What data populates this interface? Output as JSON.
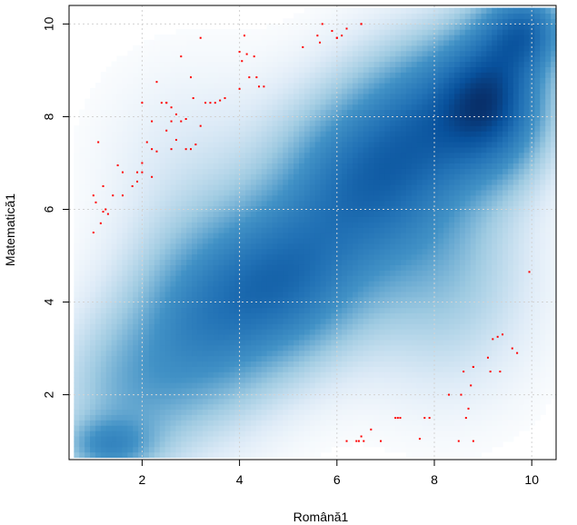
{
  "chart_data": {
    "type": "heatmap",
    "subtype": "smoothed-density-scatter",
    "xlabel": "Română1",
    "ylabel": "Matematică1",
    "xlim": [
      0.5,
      10.5
    ],
    "ylim": [
      0.6,
      10.4
    ],
    "x_ticks": [
      2,
      4,
      6,
      8,
      10
    ],
    "y_ticks": [
      2,
      4,
      6,
      8,
      10
    ],
    "grid": true,
    "colors": {
      "density_high": "#08306b",
      "density_mid": "#2171b5",
      "density_low": "#ffffff",
      "outlier_points": "#ff0000",
      "grid": "#d3d3d3"
    },
    "density_field": {
      "x_range": [
        0.6,
        10.5
      ],
      "y_range": [
        0.65,
        10.35
      ],
      "components": [
        {
          "x": 9.2,
          "y": 8.4,
          "sx": 0.8,
          "sy": 1.1,
          "w": 1.0
        },
        {
          "x": 9.9,
          "y": 9.9,
          "sx": 0.6,
          "sy": 0.6,
          "w": 0.7
        },
        {
          "x": 6.5,
          "y": 6.6,
          "sx": 1.2,
          "sy": 1.3,
          "w": 0.75
        },
        {
          "x": 5.0,
          "y": 4.5,
          "sx": 1.1,
          "sy": 1.2,
          "w": 0.7
        },
        {
          "x": 3.3,
          "y": 3.6,
          "sx": 1.1,
          "sy": 1.4,
          "w": 0.6
        },
        {
          "x": 1.7,
          "y": 2.0,
          "sx": 1.0,
          "sy": 1.2,
          "w": 0.35
        },
        {
          "x": 1.3,
          "y": 0.9,
          "sx": 0.6,
          "sy": 0.4,
          "w": 0.45
        },
        {
          "x": 7.8,
          "y": 8.0,
          "sx": 1.0,
          "sy": 1.2,
          "w": 0.55
        },
        {
          "x": 8.2,
          "y": 4.6,
          "sx": 1.2,
          "sy": 1.6,
          "w": 0.3
        },
        {
          "x": 3.0,
          "y": 7.0,
          "sx": 1.2,
          "sy": 1.4,
          "w": 0.1
        }
      ]
    },
    "outlier_points": {
      "x": [
        1.0,
        1.0,
        1.1,
        1.15,
        1.2,
        1.25,
        1.3,
        1.4,
        1.6,
        1.6,
        1.8,
        1.9,
        2.0,
        2.0,
        2.0,
        2.1,
        2.2,
        2.2,
        2.3,
        2.4,
        2.5,
        2.5,
        2.6,
        2.6,
        2.7,
        2.7,
        2.8,
        2.8,
        2.9,
        3.0,
        3.0,
        3.1,
        3.2,
        3.3,
        3.5,
        3.6,
        3.7,
        4.0,
        4.0,
        4.1,
        4.2,
        4.3,
        4.4,
        4.5,
        5.3,
        5.6,
        5.7,
        5.9,
        6.0,
        6.1,
        6.2,
        6.5,
        1.05,
        1.2,
        1.5,
        1.9,
        2.2,
        2.3,
        2.5,
        2.6,
        2.9,
        3.05,
        3.2,
        3.4,
        4.05,
        4.15,
        4.35,
        5.65,
        6.0,
        6.5
      ],
      "y": [
        5.5,
        6.3,
        7.45,
        5.7,
        6.5,
        6.0,
        5.9,
        6.3,
        6.3,
        6.8,
        6.5,
        6.6,
        6.8,
        7.0,
        8.3,
        7.45,
        7.3,
        7.9,
        8.75,
        8.3,
        7.7,
        8.3,
        7.3,
        8.2,
        8.05,
        7.5,
        7.9,
        9.3,
        7.3,
        7.3,
        8.85,
        7.4,
        7.8,
        8.3,
        8.3,
        8.35,
        8.4,
        8.6,
        9.4,
        9.75,
        8.85,
        9.3,
        8.65,
        8.65,
        9.5,
        9.75,
        10.0,
        9.85,
        9.7,
        9.75,
        9.9,
        10.0,
        6.15,
        5.95,
        6.95,
        6.8,
        6.7,
        7.25,
        8.3,
        7.9,
        7.95,
        8.4,
        9.7,
        8.3,
        9.2,
        9.35,
        8.85,
        9.6,
        9.7,
        10.0
      ]
    },
    "outlier_points_lower": {
      "x": [
        6.2,
        6.4,
        6.5,
        6.55,
        6.7,
        6.9,
        7.2,
        7.3,
        7.7,
        7.8,
        7.9,
        8.3,
        8.5,
        8.55,
        8.6,
        8.65,
        8.7,
        8.75,
        8.8,
        8.8,
        9.1,
        9.2,
        9.3,
        9.35,
        9.4,
        9.6,
        9.7,
        9.95,
        6.45,
        7.25,
        8.8,
        9.15
      ],
      "y": [
        1.0,
        1.0,
        1.1,
        1.0,
        1.25,
        1.0,
        1.5,
        1.5,
        1.05,
        1.5,
        1.5,
        2.0,
        1.0,
        2.0,
        2.5,
        1.5,
        1.7,
        2.2,
        2.6,
        1.0,
        2.8,
        3.2,
        3.25,
        2.5,
        3.3,
        3.0,
        2.9,
        4.65,
        1.0,
        1.5,
        2.6,
        2.5
      ]
    }
  }
}
